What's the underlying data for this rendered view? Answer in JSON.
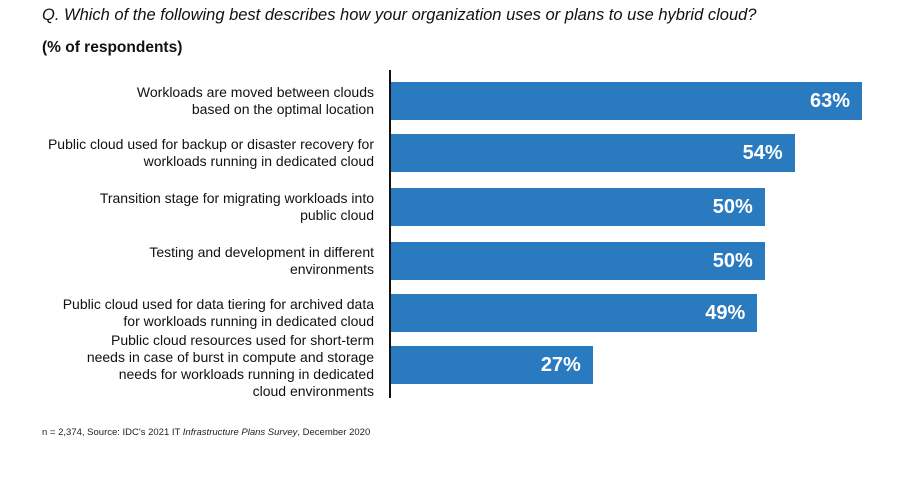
{
  "chart_data": {
    "type": "bar",
    "orientation": "horizontal",
    "title": "Q. Which of the following best describes how your organization uses or plans to use hybrid cloud?",
    "subtitle": "(% of respondents)",
    "categories": [
      "Workloads are moved between clouds based on the optimal location",
      "Public cloud used for backup or disaster recovery for workloads running in dedicated cloud",
      "Transition stage for migrating workloads into public cloud",
      "Testing and development in different environments",
      "Public cloud used for data tiering for archived data for workloads running in dedicated cloud",
      "Public cloud resources used for short-term needs in case of burst in compute and storage needs for workloads running in dedicated cloud environments"
    ],
    "values": [
      63,
      54,
      50,
      50,
      49,
      27
    ],
    "value_labels": [
      "63%",
      "54%",
      "50%",
      "50%",
      "49%",
      "27%"
    ],
    "xlim": [
      0,
      63
    ],
    "color": "#2a7abf",
    "grid": false
  },
  "footnote": {
    "pre": "n = 2,374, Source: IDC's 2021 IT ",
    "italic": "Infrastructure Plans Survey",
    "post": ", December 2020"
  }
}
